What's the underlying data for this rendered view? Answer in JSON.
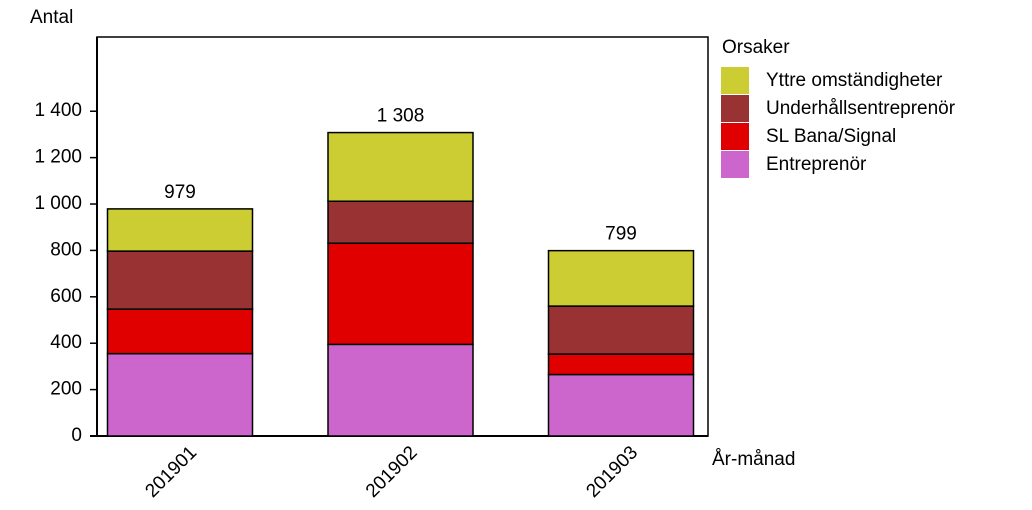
{
  "chart_data": {
    "type": "stacked-bar",
    "y_label": "Antal",
    "x_label": "År-månad",
    "legend_title": "Orsaker",
    "categories": [
      "201901",
      "201902",
      "201903"
    ],
    "series": [
      {
        "name": "Entreprenör",
        "color": "#cc66cc",
        "values": [
          355,
          395,
          265
        ]
      },
      {
        "name": "SL Bana/Signal",
        "color": "#e00000",
        "values": [
          192,
          436,
          88
        ]
      },
      {
        "name": "Underhållsentreprenör",
        "color": "#993333",
        "values": [
          250,
          181,
          207
        ]
      },
      {
        "name": "Yttre omständigheter",
        "color": "#cccc33",
        "values": [
          182,
          296,
          239
        ]
      }
    ],
    "totals": [
      979,
      1308,
      799
    ],
    "total_labels": [
      "979",
      "1 308",
      "799"
    ],
    "ylim": [
      0,
      1720
    ],
    "yticks": [
      0,
      200,
      400,
      600,
      800,
      {
        "value": 1000,
        "label": "1 000"
      },
      {
        "value": 1200,
        "label": "1 200"
      },
      {
        "value": 1400,
        "label": "1 400"
      }
    ],
    "legend": "right"
  }
}
